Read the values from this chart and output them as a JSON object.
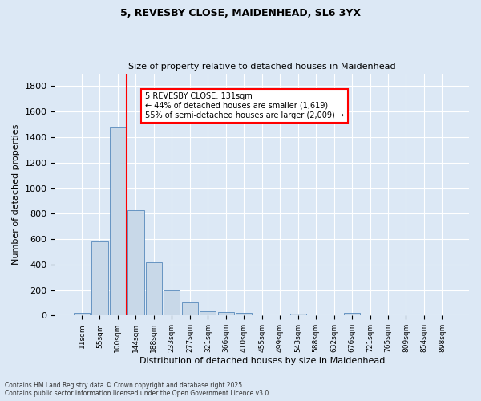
{
  "title1": "5, REVESBY CLOSE, MAIDENHEAD, SL6 3YX",
  "title2": "Size of property relative to detached houses in Maidenhead",
  "xlabel": "Distribution of detached houses by size in Maidenhead",
  "ylabel": "Number of detached properties",
  "bar_categories": [
    "11sqm",
    "55sqm",
    "100sqm",
    "144sqm",
    "188sqm",
    "233sqm",
    "277sqm",
    "321sqm",
    "366sqm",
    "410sqm",
    "455sqm",
    "499sqm",
    "543sqm",
    "588sqm",
    "632sqm",
    "676sqm",
    "721sqm",
    "765sqm",
    "809sqm",
    "854sqm",
    "898sqm"
  ],
  "bar_values": [
    20,
    580,
    1480,
    830,
    420,
    200,
    100,
    35,
    30,
    20,
    0,
    0,
    15,
    0,
    0,
    20,
    0,
    0,
    0,
    0,
    0
  ],
  "bar_color": "#c8d8e8",
  "bar_edge_color": "#5588bb",
  "vline_x_idx": 2.5,
  "vline_color": "red",
  "annotation_text": "5 REVESBY CLOSE: 131sqm\n← 44% of detached houses are smaller (1,619)\n55% of semi-detached houses are larger (2,009) →",
  "annotation_box_color": "white",
  "annotation_box_edge": "red",
  "ylim": [
    0,
    1900
  ],
  "yticks": [
    0,
    200,
    400,
    600,
    800,
    1000,
    1200,
    1400,
    1600,
    1800
  ],
  "footnote1": "Contains HM Land Registry data © Crown copyright and database right 2025.",
  "footnote2": "Contains public sector information licensed under the Open Government Licence v3.0.",
  "bg_color": "#dce8f5",
  "grid_color": "white"
}
